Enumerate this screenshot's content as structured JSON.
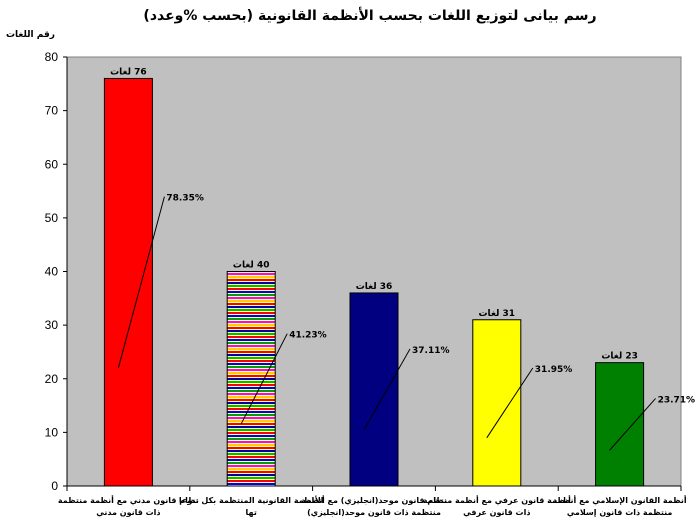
{
  "chart_data": {
    "type": "bar",
    "title": "رسم بيانى لتوزيع اللغات بحسب الأنظمة القانونية (بحسب %وعدد)",
    "ylabel": "رقم اللغات",
    "ylim": [
      0,
      80
    ],
    "yticks": [
      "0",
      "10",
      "20",
      "30",
      "40",
      "50",
      "60",
      "70",
      "80"
    ],
    "grid": false,
    "plot_background": "#c0c0c0",
    "categories": [
      [
        "نظام قانون مدني مع أنظمة منتظمة",
        "ذات قانون مدني"
      ],
      [
        "الأنظمة القانونية المنتظمة بكل تنوعا",
        "تها"
      ],
      [
        "نظام قانون موحد(انجليزي) مع أنظمة",
        "منتظمة ذات قانون موحد(انجليزي)"
      ],
      [
        "أنظمة قانون عرفي مع أنظمة منتظمة",
        "ذات قانون عرفي"
      ],
      [
        "أنظمة القانون الإسلامي مع أنظمة",
        "منتظمة ذات قانون إسلامي"
      ]
    ],
    "values": [
      76,
      40,
      36,
      31,
      23
    ],
    "value_labels": [
      "76 لغات",
      "40 لغات",
      "36 لغات",
      "31 لغات",
      "23 لغات"
    ],
    "percent_labels": [
      "78.35%",
      "41.23%",
      "37.11%",
      "31.95%",
      "23.71%"
    ],
    "colors": [
      "#ff0000",
      "striped",
      "#000080",
      "#ffff00",
      "#008000"
    ]
  }
}
